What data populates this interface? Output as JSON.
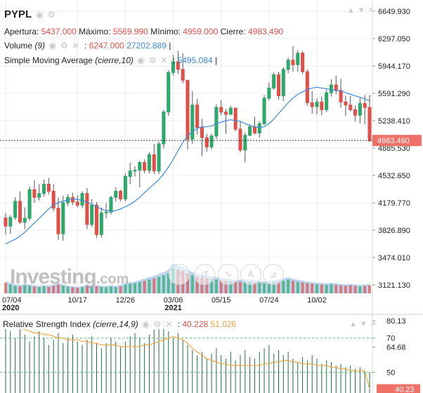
{
  "ticker": "PYPL",
  "ohlc": {
    "open_label": "Apertura:",
    "open": "5437.000",
    "high_label": "Máximo:",
    "high": "5569.990",
    "low_label": "Mínimo:",
    "low": "4959.000",
    "close_label": "Cierre:",
    "close": "4983.490"
  },
  "volume_legend": {
    "label": "Volume",
    "param": "(9)",
    "sep": ":",
    "value1": "6247.000",
    "value2": "27202.889",
    "tail": "|"
  },
  "sma_legend": {
    "label": "Simple Moving Average",
    "param": "(cierre,10)",
    "sep": ":",
    "value": "5495.084",
    "tail": "|"
  },
  "rsi_legend": {
    "label": "Relative Strength Index",
    "param": "(cierre,14,9)",
    "sep": ":",
    "value1": "40.228",
    "value2": "51.026"
  },
  "watermark": {
    "name": "Investing",
    "suffix": ".com"
  },
  "colors": {
    "up": "#2ea86b",
    "down": "#e0504a",
    "sma": "#3b8ad9",
    "volume_area": "#a7c8ea",
    "rsi_line": "#f0a23a",
    "rsi_bars": "#1f6f4a",
    "price_tag": "#f07167",
    "grid": "#ececec"
  },
  "icons": [
    "eye-icon",
    "settings-icon",
    "close-icon",
    "arrow-up-icon",
    "arrow-down-icon"
  ],
  "tool_icons": [
    "draw-tool-icon",
    "undo-icon",
    "brush-icon",
    "text-icon",
    "measure-icon"
  ],
  "chart_data": [
    {
      "type": "candlestick",
      "title": "PYPL",
      "x_ticks": [
        {
          "label": "07/04",
          "sub": "2020",
          "i": 0
        },
        {
          "label": "10/17",
          "sub": "",
          "i": 15
        },
        {
          "label": "12/26",
          "sub": "",
          "i": 25
        },
        {
          "label": "03/06",
          "sub": "2021",
          "i": 35
        },
        {
          "label": "05/15",
          "sub": "",
          "i": 45
        },
        {
          "label": "07/24",
          "sub": "",
          "i": 55
        },
        {
          "label": "10/02",
          "sub": "",
          "i": 65
        }
      ],
      "y_ticks": [
        "6649.930",
        "6297.050",
        "5944.170",
        "5591.290",
        "5238.410",
        "4885.530",
        "4532.650",
        "4179.770",
        "3826.890",
        "3474.010",
        "3121.130"
      ],
      "ylim": [
        3121.13,
        6649.93
      ],
      "last_price": "4983.490",
      "candles": [
        [
          3985,
          4050,
          3770,
          3880
        ],
        [
          3880,
          4020,
          3780,
          3990
        ],
        [
          3990,
          4250,
          3960,
          4200
        ],
        [
          4200,
          4330,
          3910,
          3930
        ],
        [
          3930,
          4120,
          3840,
          3980
        ],
        [
          3980,
          4390,
          3950,
          4350
        ],
        [
          4350,
          4470,
          4180,
          4250
        ],
        [
          4250,
          4420,
          4210,
          4300
        ],
        [
          4300,
          4480,
          4260,
          4420
        ],
        [
          4420,
          4500,
          4290,
          4330
        ],
        [
          4330,
          4420,
          4070,
          4110
        ],
        [
          4110,
          4250,
          3700,
          3780
        ],
        [
          3780,
          4270,
          3690,
          4180
        ],
        [
          4180,
          4290,
          4140,
          4250
        ],
        [
          4250,
          4310,
          4150,
          4190
        ],
        [
          4190,
          4280,
          4120,
          4150
        ],
        [
          4150,
          4330,
          4110,
          4300
        ],
        [
          4300,
          4370,
          3840,
          3900
        ],
        [
          3900,
          4230,
          3870,
          4150
        ],
        [
          4150,
          4190,
          3730,
          3770
        ],
        [
          3770,
          4120,
          3730,
          4050
        ],
        [
          4050,
          4180,
          3980,
          4060
        ],
        [
          4060,
          4270,
          4030,
          4250
        ],
        [
          4250,
          4380,
          4200,
          4330
        ],
        [
          4330,
          4350,
          4200,
          4230
        ],
        [
          4230,
          4560,
          4200,
          4520
        ],
        [
          4520,
          4700,
          4420,
          4590
        ],
        [
          4590,
          4650,
          4520,
          4600
        ],
        [
          4600,
          4720,
          4380,
          4700
        ],
        [
          4700,
          4740,
          4560,
          4600
        ],
        [
          4600,
          4830,
          4560,
          4800
        ],
        [
          4800,
          4940,
          4550,
          4590
        ],
        [
          4590,
          4970,
          4550,
          4940
        ],
        [
          4940,
          5380,
          4880,
          5350
        ],
        [
          5350,
          5890,
          5300,
          5860
        ],
        [
          5860,
          6090,
          5820,
          6000
        ],
        [
          6000,
          6140,
          5840,
          5900
        ],
        [
          5900,
          6110,
          5720,
          5760
        ],
        [
          5760,
          5750,
          4870,
          5000
        ],
        [
          5000,
          5620,
          4940,
          5440
        ],
        [
          5440,
          5520,
          5060,
          5150
        ],
        [
          5150,
          5260,
          4780,
          5020
        ],
        [
          5020,
          5070,
          4840,
          4900
        ],
        [
          4900,
          5070,
          4870,
          5040
        ],
        [
          5040,
          5450,
          5000,
          5410
        ],
        [
          5410,
          5500,
          5310,
          5350
        ],
        [
          5350,
          5390,
          5070,
          5320
        ],
        [
          5320,
          5430,
          5310,
          5400
        ],
        [
          5400,
          5410,
          5100,
          5130
        ],
        [
          5130,
          5230,
          4830,
          4860
        ],
        [
          4860,
          5090,
          4700,
          5050
        ],
        [
          5050,
          5190,
          5040,
          5160
        ],
        [
          5160,
          5290,
          5060,
          5080
        ],
        [
          5080,
          5230,
          5020,
          5200
        ],
        [
          5200,
          5570,
          5180,
          5530
        ],
        [
          5530,
          5730,
          5500,
          5660
        ],
        [
          5660,
          5860,
          5640,
          5830
        ],
        [
          5830,
          5870,
          5510,
          5560
        ],
        [
          5560,
          5930,
          5490,
          5900
        ],
        [
          5900,
          6050,
          5850,
          6020
        ],
        [
          6020,
          6200,
          5870,
          5960
        ],
        [
          5960,
          6150,
          5870,
          6110
        ],
        [
          6110,
          6140,
          5840,
          5870
        ],
        [
          5870,
          5900,
          5430,
          5470
        ],
        [
          5470,
          5620,
          5330,
          5420
        ],
        [
          5420,
          5530,
          5320,
          5480
        ],
        [
          5480,
          5550,
          5310,
          5380
        ],
        [
          5380,
          5640,
          5350,
          5600
        ],
        [
          5600,
          5770,
          5550,
          5700
        ],
        [
          5700,
          5820,
          5580,
          5630
        ],
        [
          5630,
          5780,
          5410,
          5480
        ],
        [
          5480,
          5560,
          5300,
          5440
        ],
        [
          5440,
          5560,
          5360,
          5380
        ],
        [
          5380,
          5430,
          5230,
          5310
        ],
        [
          5310,
          5530,
          5200,
          5460
        ],
        [
          5460,
          5570,
          5190,
          5410
        ],
        [
          5410,
          5570,
          4960,
          4983
        ]
      ],
      "sma": [
        3650,
        3680,
        3710,
        3750,
        3800,
        3860,
        3920,
        3980,
        4040,
        4100,
        4150,
        4180,
        4200,
        4215,
        4230,
        4225,
        4210,
        4190,
        4160,
        4130,
        4100,
        4080,
        4070,
        4080,
        4100,
        4130,
        4160,
        4200,
        4250,
        4310,
        4370,
        4420,
        4480,
        4550,
        4640,
        4740,
        4850,
        4960,
        5040,
        5100,
        5140,
        5160,
        5160,
        5170,
        5200,
        5220,
        5240,
        5250,
        5240,
        5230,
        5200,
        5180,
        5160,
        5150,
        5160,
        5200,
        5260,
        5330,
        5400,
        5470,
        5530,
        5580,
        5610,
        5640,
        5660,
        5670,
        5660,
        5650,
        5640,
        5630,
        5620,
        5600,
        5580,
        5560,
        5540,
        5520,
        5495
      ],
      "volume": [
        0.42,
        0.35,
        0.3,
        0.28,
        0.32,
        0.3,
        0.27,
        0.25,
        0.28,
        0.26,
        0.3,
        0.35,
        0.3,
        0.26,
        0.24,
        0.22,
        0.25,
        0.27,
        0.24,
        0.28,
        0.26,
        0.25,
        0.27,
        0.25,
        0.28,
        0.35,
        0.38,
        0.4,
        0.45,
        0.5,
        0.55,
        0.6,
        0.66,
        0.72,
        0.8,
        1.0,
        0.95,
        0.9,
        0.8,
        0.72,
        0.66,
        0.62,
        0.6,
        0.58,
        0.55,
        0.52,
        0.5,
        0.48,
        0.45,
        0.46,
        0.48,
        0.46,
        0.44,
        0.42,
        0.4,
        0.42,
        0.45,
        0.48,
        0.5,
        0.55,
        0.5,
        0.46,
        0.44,
        0.4,
        0.38,
        0.36,
        0.35,
        0.34,
        0.36,
        0.34,
        0.32,
        0.3,
        0.32,
        0.3,
        0.28,
        0.3,
        0.32
      ]
    },
    {
      "type": "line",
      "title": "Relative Strength Index",
      "y_ticks": [
        "80.13",
        "70",
        "64.68",
        "50"
      ],
      "ylim": [
        40,
        83
      ],
      "reference_lines": [
        70,
        50
      ],
      "last_value": "40.23",
      "rsi": [
        80,
        78,
        77,
        76,
        75,
        74,
        73,
        73,
        72,
        72,
        71,
        70,
        70,
        69,
        69,
        69,
        68,
        68,
        67,
        67,
        66,
        66,
        66,
        66,
        65,
        65,
        65,
        65,
        65,
        66,
        66,
        67,
        68,
        69,
        70,
        71,
        70,
        69,
        67,
        64,
        62,
        60,
        58,
        57,
        56,
        55,
        55,
        54,
        54,
        54,
        54,
        54,
        54,
        54,
        55,
        55,
        56,
        56,
        57,
        57,
        56,
        56,
        55,
        55,
        55,
        54,
        54,
        54,
        53,
        53,
        52,
        52,
        51,
        51,
        51,
        51,
        40.2
      ],
      "bars": [
        78,
        74,
        70,
        76,
        72,
        68,
        71,
        74,
        70,
        66,
        69,
        73,
        67,
        70,
        72,
        68,
        66,
        69,
        71,
        67,
        64,
        67,
        70,
        68,
        65,
        68,
        71,
        73,
        70,
        67,
        72,
        75,
        78,
        80,
        74,
        70,
        73,
        69,
        66,
        63,
        60,
        62,
        58,
        61,
        64,
        60,
        58,
        62,
        57,
        60,
        63,
        59,
        58,
        62,
        64,
        66,
        61,
        63,
        60,
        62,
        58,
        56,
        59,
        57,
        60,
        58,
        55,
        57,
        56,
        54,
        55,
        53,
        54,
        52,
        53,
        51,
        50
      ]
    }
  ]
}
